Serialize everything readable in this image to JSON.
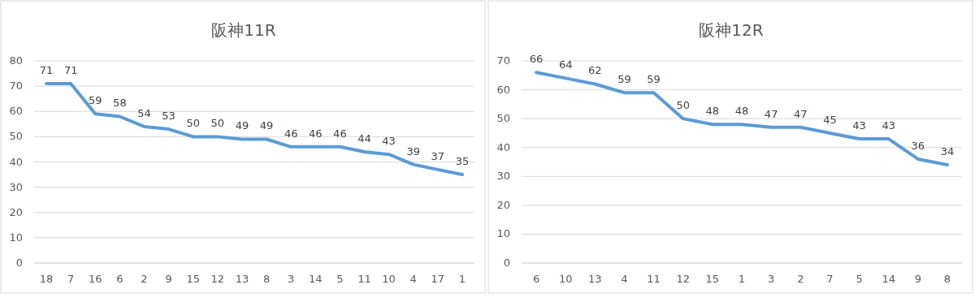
{
  "chart_data": [
    {
      "type": "line",
      "title": "阪神11R",
      "categories": [
        "18",
        "7",
        "16",
        "6",
        "2",
        "9",
        "15",
        "12",
        "13",
        "8",
        "3",
        "14",
        "5",
        "11",
        "10",
        "4",
        "17",
        "1"
      ],
      "values": [
        71,
        71,
        59,
        58,
        54,
        53,
        50,
        50,
        49,
        49,
        46,
        46,
        46,
        44,
        43,
        39,
        37,
        35
      ],
      "color": "#5b9bd5",
      "ylim": [
        0,
        80
      ],
      "yticks": [
        0,
        10,
        20,
        30,
        40,
        50,
        60,
        70,
        80
      ],
      "grid": "y",
      "data_labels": true
    },
    {
      "type": "line",
      "title": "阪神12R",
      "categories": [
        "6",
        "10",
        "13",
        "4",
        "11",
        "12",
        "15",
        "1",
        "3",
        "2",
        "7",
        "5",
        "14",
        "9",
        "8"
      ],
      "values": [
        66,
        64,
        62,
        59,
        59,
        50,
        48,
        48,
        47,
        47,
        45,
        43,
        43,
        36,
        34
      ],
      "color": "#5b9bd5",
      "ylim": [
        0,
        70
      ],
      "yticks": [
        0,
        10,
        20,
        30,
        40,
        50,
        60,
        70
      ],
      "grid": "y",
      "data_labels": true
    }
  ]
}
